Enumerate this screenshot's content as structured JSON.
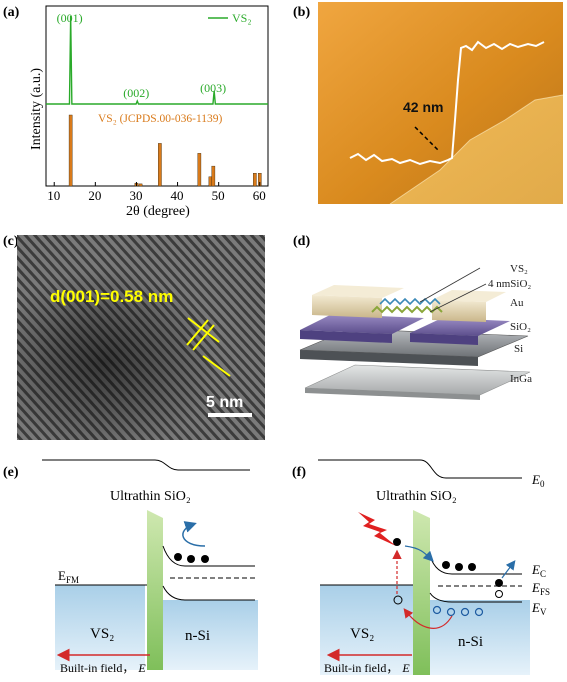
{
  "panels": {
    "a": {
      "label": "(a)"
    },
    "b": {
      "label": "(b)"
    },
    "c": {
      "label": "(c)"
    },
    "d": {
      "label": "(d)"
    },
    "e": {
      "label": "(e)"
    },
    "f": {
      "label": "(f)"
    }
  },
  "chart_data": {
    "type": "bar",
    "ylabel": "Intensity (a.u.)",
    "xlabel": "2θ (degree)",
    "xlim": [
      8,
      62
    ],
    "xticks": [
      "10",
      "20",
      "30",
      "40",
      "50",
      "60"
    ],
    "series": [
      {
        "name": "VS₂",
        "type": "line",
        "color": "#2aaa2a",
        "peaks": [
          {
            "x": 14.0,
            "label": "(001)"
          },
          {
            "x": 30.2,
            "label": "(002)"
          },
          {
            "x": 48.9,
            "label": "(003)"
          }
        ]
      },
      {
        "name": "VS₂ (JCPDS.00-036-1139)",
        "type": "bar",
        "color": "#d97a1a",
        "x": [
          14.0,
          30.0,
          31.0,
          35.7,
          45.3,
          48.0,
          48.7,
          58.8,
          60.0
        ],
        "values": [
          100,
          4,
          3,
          60,
          46,
          13,
          28,
          18,
          18
        ]
      }
    ]
  },
  "afm": {
    "height_label": "42 nm"
  },
  "hrtem": {
    "spacing_label": "d(001)=0.58 nm",
    "scale_bar": "5 nm"
  },
  "device": {
    "labels": [
      "VS₂",
      "4 nmSiO₂",
      "Au",
      "SiO₂",
      "Si",
      "InGa"
    ]
  },
  "band_e": {
    "oxide": "Ultrathin SiO₂",
    "efm": "E",
    "efm_sub": "FM",
    "vs2": "VS₂",
    "nsi": "n-Si",
    "field": "Built-in field，",
    "field_e": "E"
  },
  "band_f": {
    "oxide": "Ultrathin SiO₂",
    "e0": "E",
    "e0_sub": "0",
    "ec": "E",
    "ec_sub": "C",
    "efs": "E",
    "efs_sub": "FS",
    "ev": "E",
    "ev_sub": "V",
    "vs2": "VS₂",
    "nsi": "n-Si",
    "field": "Built-in field，",
    "field_e": "E"
  }
}
